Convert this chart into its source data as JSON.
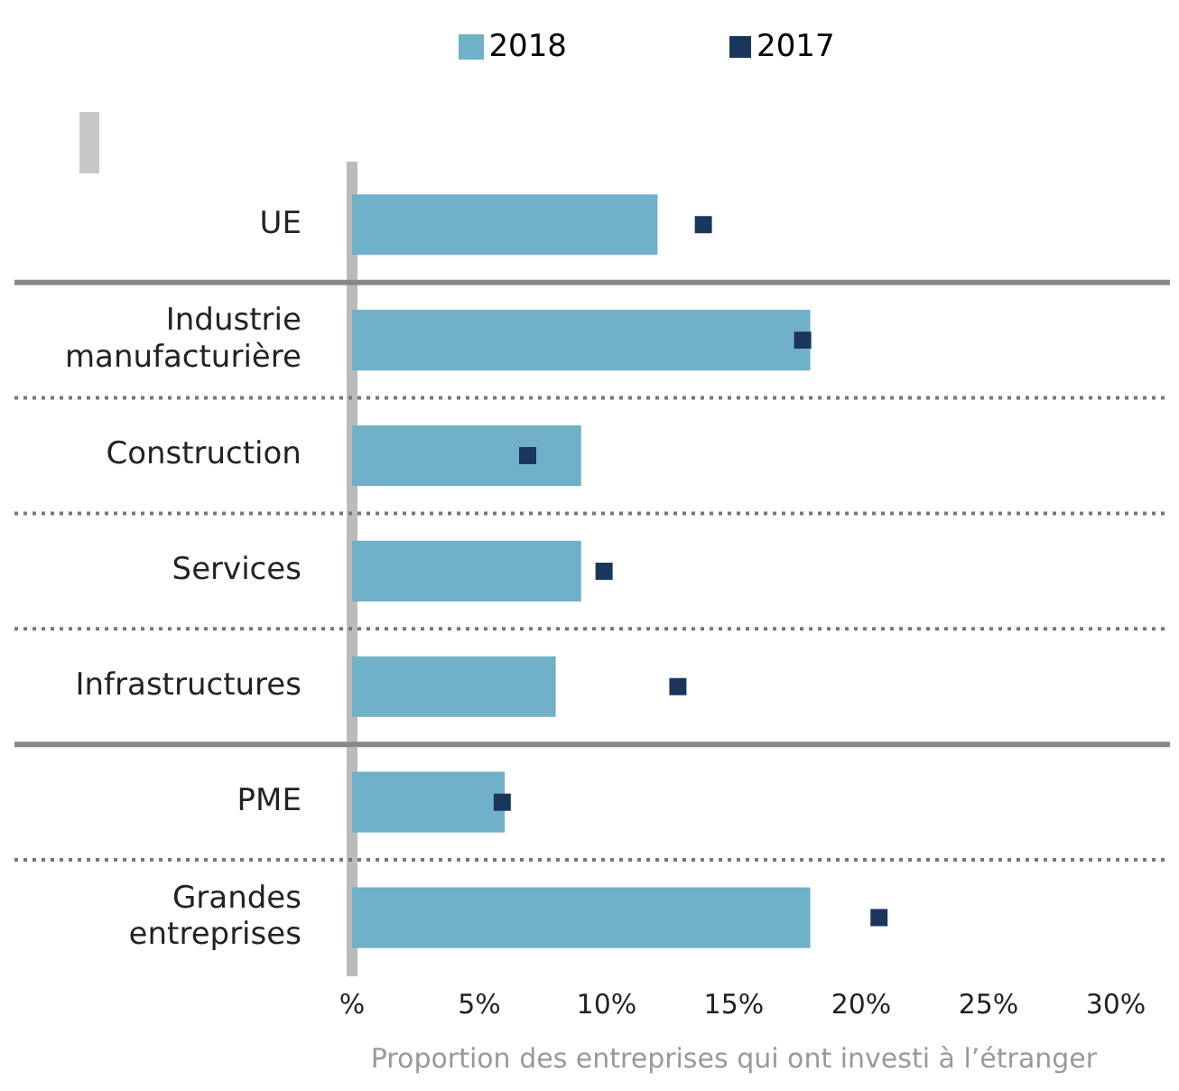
{
  "chart_data": {
    "type": "bar",
    "orientation": "horizontal",
    "xlabel": "Proportion des entreprises qui ont investi à l’étranger",
    "categories": [
      "UE",
      "Industrie manufacturière",
      "Construction",
      "Services",
      "Infrastructures",
      "PME",
      "Grandes entreprises"
    ],
    "series": [
      {
        "name": "2018",
        "color": "#70b0c8",
        "values": [
          12,
          18,
          9,
          9,
          8,
          6,
          18
        ]
      },
      {
        "name": "2017",
        "type": "scatter",
        "color": "#1a365d",
        "values": [
          13.8,
          17.7,
          6.9,
          9.9,
          12.8,
          5.9,
          20.7
        ]
      }
    ],
    "xlim": [
      0,
      30
    ],
    "xticks": [
      {
        "value": 0,
        "label": "%"
      },
      {
        "value": 5,
        "label": "5%"
      },
      {
        "value": 10,
        "label": "10%"
      },
      {
        "value": 15,
        "label": "15%"
      },
      {
        "value": 20,
        "label": "20%"
      },
      {
        "value": 25,
        "label": "25%"
      },
      {
        "value": 30,
        "label": "30%"
      }
    ],
    "grid": false,
    "legend": "top",
    "marker": "square"
  }
}
